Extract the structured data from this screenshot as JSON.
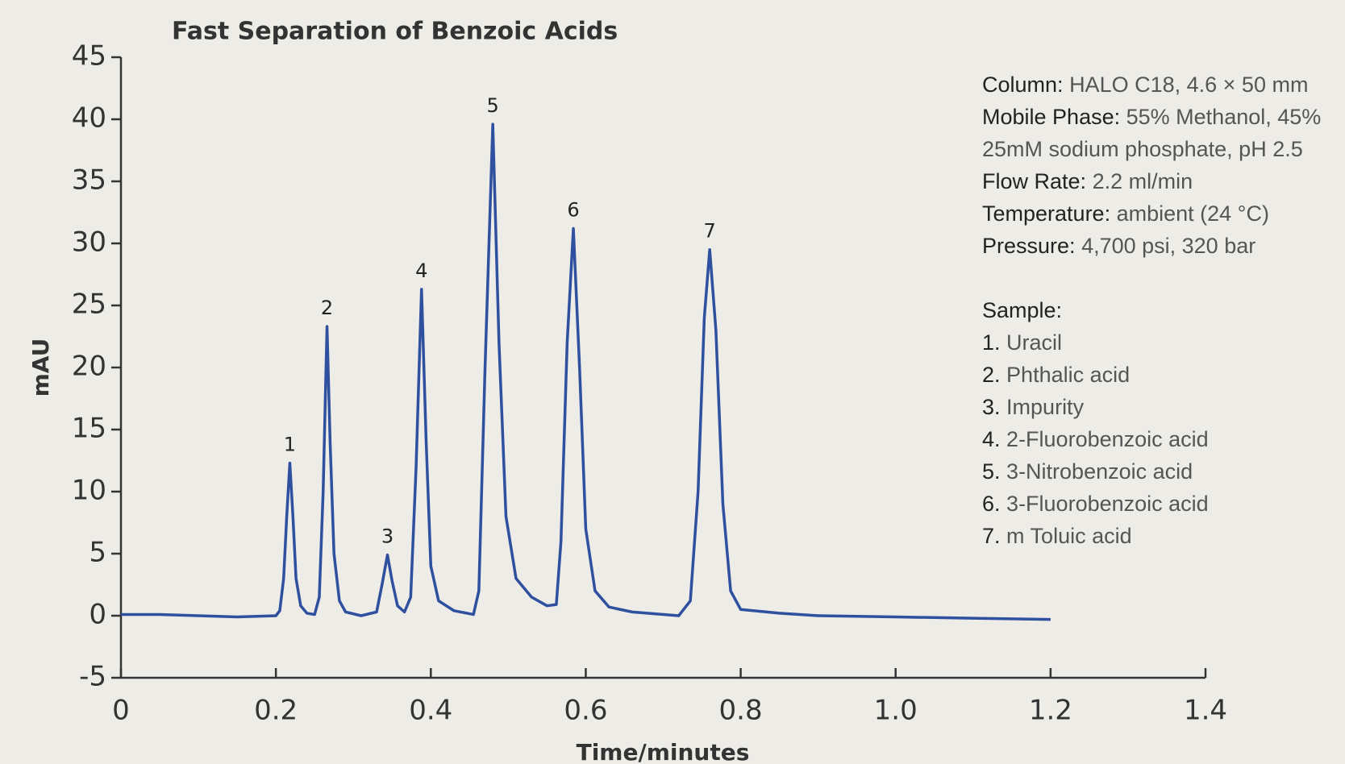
{
  "chart_data": {
    "type": "line",
    "title": "Fast Separation of Benzoic Acids",
    "xlabel": "Time/minutes",
    "ylabel": "mAU",
    "xlim": [
      0,
      1.4
    ],
    "xticks": [
      0,
      0.2,
      0.4,
      0.6,
      0.8,
      {
        "value": 1,
        "label": "1.0"
      },
      1.2,
      1.4
    ],
    "ylim": [
      -5,
      45
    ],
    "yticks": [
      -5,
      0,
      5,
      10,
      15,
      20,
      25,
      30,
      35,
      40,
      45
    ],
    "series": [
      {
        "color": "#2f4f9f",
        "x": [
          0,
          0.05,
          0.1,
          0.15,
          0.2,
          0.205,
          0.21,
          0.214,
          0.218,
          0.222,
          0.226,
          0.232,
          0.24,
          0.25,
          0.256,
          0.261,
          0.266,
          0.27,
          0.275,
          0.282,
          0.29,
          0.31,
          0.33,
          0.337,
          0.344,
          0.35,
          0.357,
          0.366,
          0.374,
          0.381,
          0.388,
          0.394,
          0.4,
          0.41,
          0.43,
          0.455,
          0.462,
          0.47,
          0.48,
          0.488,
          0.497,
          0.51,
          0.53,
          0.55,
          0.562,
          0.568,
          0.576,
          0.584,
          0.592,
          0.6,
          0.612,
          0.63,
          0.66,
          0.72,
          0.735,
          0.745,
          0.753,
          0.76,
          0.768,
          0.777,
          0.787,
          0.8,
          0.85,
          0.9,
          1.0,
          1.1,
          1.2
        ],
        "values": [
          0.1,
          0.1,
          0.0,
          -0.1,
          0.0,
          0.4,
          3,
          8,
          12.3,
          8,
          3,
          0.8,
          0.2,
          0.1,
          1.5,
          10,
          23.3,
          14,
          5,
          1.2,
          0.3,
          0.0,
          0.3,
          2.5,
          4.9,
          2.8,
          0.8,
          0.3,
          1.5,
          12,
          26.3,
          14,
          4,
          1.2,
          0.4,
          0.1,
          2,
          20,
          39.6,
          22,
          8,
          3,
          1.5,
          0.8,
          0.9,
          6,
          22,
          31.2,
          20,
          7,
          2,
          0.7,
          0.3,
          0.0,
          1.2,
          10,
          24,
          29.5,
          23,
          9,
          2,
          0.5,
          0.2,
          0.0,
          -0.1,
          -0.2,
          -0.3
        ]
      }
    ],
    "peak_labels": [
      {
        "text": "1",
        "x": 0.218,
        "y": 12.3
      },
      {
        "text": "2",
        "x": 0.266,
        "y": 23.3
      },
      {
        "text": "3",
        "x": 0.344,
        "y": 4.9
      },
      {
        "text": "4",
        "x": 0.388,
        "y": 26.3
      },
      {
        "text": "5",
        "x": 0.48,
        "y": 39.6
      },
      {
        "text": "6",
        "x": 0.584,
        "y": 31.2
      },
      {
        "text": "7",
        "x": 0.76,
        "y": 29.5
      }
    ],
    "conditions": [
      {
        "label": "Column:",
        "value": "HALO C18, 4.6 × 50 mm"
      },
      {
        "label": "Mobile Phase:",
        "value": "55% Methanol, 45%"
      },
      {
        "value": "25mM sodium phosphate, pH 2.5"
      },
      {
        "label": "Flow Rate:",
        "value": "2.2 ml/min"
      },
      {
        "label": "Temperature:",
        "value": "ambient (24 °C)"
      },
      {
        "label": "Pressure:",
        "value": "4,700 psi, 320 bar"
      }
    ],
    "sample_title": "Sample:",
    "sample": [
      {
        "number": "1.",
        "name": "Uracil"
      },
      {
        "number": "2.",
        "name": "Phthalic acid"
      },
      {
        "number": "3.",
        "name": "Impurity"
      },
      {
        "number": "4.",
        "name": "2-Fluorobenzoic acid"
      },
      {
        "number": "5.",
        "name": "3-Nitrobenzoic acid"
      },
      {
        "number": "6.",
        "name": "3-Fluorobenzoic acid"
      },
      {
        "number": "7.",
        "name": "m Toluic acid"
      }
    ]
  }
}
